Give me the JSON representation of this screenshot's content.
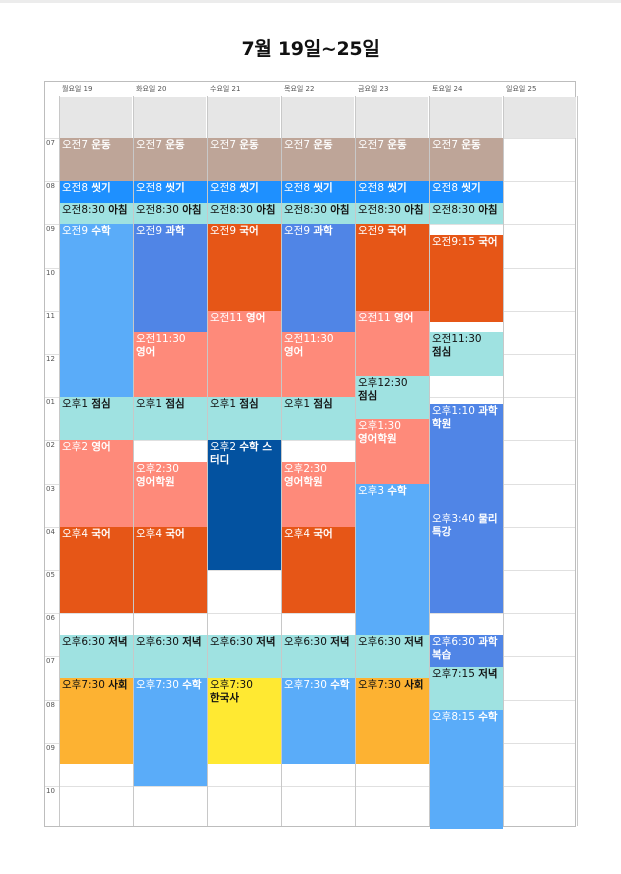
{
  "title": "7월 19일~25일",
  "days": [
    "월요일 19",
    "화요일 20",
    "수요일 21",
    "목요일 22",
    "금요일 23",
    "토요일 24",
    "일요일 25"
  ],
  "hours": [
    "07",
    "08",
    "09",
    "10",
    "11",
    "12",
    "01",
    "02",
    "03",
    "04",
    "05",
    "06",
    "07",
    "08",
    "09",
    "10"
  ],
  "colors": {
    "exercise": "#bea598",
    "wash": "#1e90ff",
    "meal": "#9fe2e1",
    "math": "#5aacf9",
    "science": "#5085e6",
    "korean": "#e65617",
    "english": "#fe8a7a",
    "academy": "#0352a0",
    "social": "#fdb232",
    "history": "#ffe932"
  },
  "events": [
    {
      "day": 0,
      "start": "07:00",
      "end": "08:00",
      "time": "오전7",
      "name": "운동",
      "color": "exercise",
      "text": "light"
    },
    {
      "day": 1,
      "start": "07:00",
      "end": "08:00",
      "time": "오전7",
      "name": "운동",
      "color": "exercise",
      "text": "light"
    },
    {
      "day": 2,
      "start": "07:00",
      "end": "08:00",
      "time": "오전7",
      "name": "운동",
      "color": "exercise",
      "text": "light"
    },
    {
      "day": 3,
      "start": "07:00",
      "end": "08:00",
      "time": "오전7",
      "name": "운동",
      "color": "exercise",
      "text": "light"
    },
    {
      "day": 4,
      "start": "07:00",
      "end": "08:00",
      "time": "오전7",
      "name": "운동",
      "color": "exercise",
      "text": "light"
    },
    {
      "day": 5,
      "start": "07:00",
      "end": "08:00",
      "time": "오전7",
      "name": "운동",
      "color": "exercise",
      "text": "light"
    },
    {
      "day": 0,
      "start": "08:00",
      "end": "08:30",
      "time": "오전8",
      "name": "씻기",
      "color": "wash",
      "text": "light"
    },
    {
      "day": 1,
      "start": "08:00",
      "end": "08:30",
      "time": "오전8",
      "name": "씻기",
      "color": "wash",
      "text": "light"
    },
    {
      "day": 2,
      "start": "08:00",
      "end": "08:30",
      "time": "오전8",
      "name": "씻기",
      "color": "wash",
      "text": "light"
    },
    {
      "day": 3,
      "start": "08:00",
      "end": "08:30",
      "time": "오전8",
      "name": "씻기",
      "color": "wash",
      "text": "light"
    },
    {
      "day": 4,
      "start": "08:00",
      "end": "08:30",
      "time": "오전8",
      "name": "씻기",
      "color": "wash",
      "text": "light"
    },
    {
      "day": 5,
      "start": "08:00",
      "end": "08:30",
      "time": "오전8",
      "name": "씻기",
      "color": "wash",
      "text": "light"
    },
    {
      "day": 0,
      "start": "08:30",
      "end": "09:00",
      "time": "오전8:30",
      "name": "아침",
      "color": "meal",
      "text": "dark"
    },
    {
      "day": 1,
      "start": "08:30",
      "end": "09:00",
      "time": "오전8:30",
      "name": "아침",
      "color": "meal",
      "text": "dark"
    },
    {
      "day": 2,
      "start": "08:30",
      "end": "09:00",
      "time": "오전8:30",
      "name": "아침",
      "color": "meal",
      "text": "dark"
    },
    {
      "day": 3,
      "start": "08:30",
      "end": "09:00",
      "time": "오전8:30",
      "name": "아침",
      "color": "meal",
      "text": "dark"
    },
    {
      "day": 4,
      "start": "08:30",
      "end": "09:00",
      "time": "오전8:30",
      "name": "아침",
      "color": "meal",
      "text": "dark"
    },
    {
      "day": 5,
      "start": "08:30",
      "end": "09:00",
      "time": "오전8:30",
      "name": "아침",
      "color": "meal",
      "text": "dark"
    },
    {
      "day": 0,
      "start": "09:00",
      "end": "13:00",
      "time": "오전9",
      "name": "수학",
      "color": "math",
      "text": "light"
    },
    {
      "day": 1,
      "start": "09:00",
      "end": "11:30",
      "time": "오전9",
      "name": "과학",
      "color": "science",
      "text": "light"
    },
    {
      "day": 1,
      "start": "11:30",
      "end": "13:00",
      "time": "오전11:30",
      "name": "영어",
      "color": "english",
      "text": "light",
      "wrap": true
    },
    {
      "day": 2,
      "start": "09:00",
      "end": "11:00",
      "time": "오전9",
      "name": "국어",
      "color": "korean",
      "text": "light"
    },
    {
      "day": 2,
      "start": "11:00",
      "end": "13:00",
      "time": "오전11",
      "name": "영어",
      "color": "english",
      "text": "light"
    },
    {
      "day": 3,
      "start": "09:00",
      "end": "11:30",
      "time": "오전9",
      "name": "과학",
      "color": "science",
      "text": "light"
    },
    {
      "day": 3,
      "start": "11:30",
      "end": "13:00",
      "time": "오전11:30",
      "name": "영어",
      "color": "english",
      "text": "light",
      "wrap": true
    },
    {
      "day": 4,
      "start": "09:00",
      "end": "11:00",
      "time": "오전9",
      "name": "국어",
      "color": "korean",
      "text": "light"
    },
    {
      "day": 4,
      "start": "11:00",
      "end": "12:30",
      "time": "오전11",
      "name": "영어",
      "color": "english",
      "text": "light"
    },
    {
      "day": 4,
      "start": "12:30",
      "end": "13:30",
      "time": "오후12:30",
      "name": "점심",
      "color": "meal",
      "text": "dark",
      "wrap": true
    },
    {
      "day": 5,
      "start": "09:15",
      "end": "11:15",
      "time": "오전9:15",
      "name": "국어",
      "color": "korean",
      "text": "light"
    },
    {
      "day": 5,
      "start": "11:30",
      "end": "12:30",
      "time": "오전11:30",
      "name": "점심",
      "color": "meal",
      "text": "dark",
      "wrap": true
    },
    {
      "day": 0,
      "start": "13:00",
      "end": "14:00",
      "time": "오후1",
      "name": "점심",
      "color": "meal",
      "text": "dark"
    },
    {
      "day": 1,
      "start": "13:00",
      "end": "14:00",
      "time": "오후1",
      "name": "점심",
      "color": "meal",
      "text": "dark"
    },
    {
      "day": 2,
      "start": "13:00",
      "end": "14:00",
      "time": "오후1",
      "name": "점심",
      "color": "meal",
      "text": "dark"
    },
    {
      "day": 3,
      "start": "13:00",
      "end": "14:00",
      "time": "오후1",
      "name": "점심",
      "color": "meal",
      "text": "dark"
    },
    {
      "day": 4,
      "start": "13:30",
      "end": "15:00",
      "time": "오후1:30",
      "name": "영어학원",
      "color": "english",
      "text": "light",
      "wrap": true
    },
    {
      "day": 5,
      "start": "13:10",
      "end": "15:40",
      "time": "오후1:10",
      "name": "과학학원",
      "color": "science",
      "text": "light",
      "wrap2": true
    },
    {
      "day": 0,
      "start": "14:00",
      "end": "16:00",
      "time": "오후2",
      "name": "영어",
      "color": "english",
      "text": "light"
    },
    {
      "day": 1,
      "start": "14:30",
      "end": "16:00",
      "time": "오후2:30",
      "name": "영어학원",
      "color": "english",
      "text": "light",
      "wrap": true
    },
    {
      "day": 2,
      "start": "14:00",
      "end": "17:00",
      "time": "오후2",
      "name": "수학 스터디",
      "color": "academy",
      "text": "light",
      "wrap2": true
    },
    {
      "day": 3,
      "start": "14:30",
      "end": "16:00",
      "time": "오후2:30",
      "name": "영어학원",
      "color": "english",
      "text": "light",
      "wrap": true
    },
    {
      "day": 4,
      "start": "15:00",
      "end": "18:30",
      "time": "오후3",
      "name": "수학",
      "color": "math",
      "text": "light"
    },
    {
      "day": 5,
      "start": "15:40",
      "end": "18:00",
      "time": "오후3:40",
      "name": "물리 특강",
      "color": "science",
      "text": "light",
      "wrap2": true
    },
    {
      "day": 0,
      "start": "16:00",
      "end": "18:00",
      "time": "오후4",
      "name": "국어",
      "color": "korean",
      "text": "light"
    },
    {
      "day": 1,
      "start": "16:00",
      "end": "18:00",
      "time": "오후4",
      "name": "국어",
      "color": "korean",
      "text": "light"
    },
    {
      "day": 3,
      "start": "16:00",
      "end": "18:00",
      "time": "오후4",
      "name": "국어",
      "color": "korean",
      "text": "light"
    },
    {
      "day": 0,
      "start": "18:30",
      "end": "19:30",
      "time": "오후6:30",
      "name": "저녁",
      "color": "meal",
      "text": "dark"
    },
    {
      "day": 1,
      "start": "18:30",
      "end": "19:30",
      "time": "오후6:30",
      "name": "저녁",
      "color": "meal",
      "text": "dark"
    },
    {
      "day": 2,
      "start": "18:30",
      "end": "19:30",
      "time": "오후6:30",
      "name": "저녁",
      "color": "meal",
      "text": "dark"
    },
    {
      "day": 3,
      "start": "18:30",
      "end": "19:30",
      "time": "오후6:30",
      "name": "저녁",
      "color": "meal",
      "text": "dark"
    },
    {
      "day": 4,
      "start": "18:30",
      "end": "19:30",
      "time": "오후6:30",
      "name": "저녁",
      "color": "meal",
      "text": "dark"
    },
    {
      "day": 5,
      "start": "18:30",
      "end": "19:15",
      "time": "오후6:30",
      "name": "과학 복습",
      "color": "science",
      "text": "light",
      "wrap2": true
    },
    {
      "day": 5,
      "start": "19:15",
      "end": "20:15",
      "time": "오후7:15",
      "name": "저녁",
      "color": "meal",
      "text": "dark"
    },
    {
      "day": 0,
      "start": "19:30",
      "end": "21:30",
      "time": "오후7:30",
      "name": "사회",
      "color": "social",
      "text": "dark"
    },
    {
      "day": 1,
      "start": "19:30",
      "end": "22:00",
      "time": "오후7:30",
      "name": "수학",
      "color": "math",
      "text": "light"
    },
    {
      "day": 2,
      "start": "19:30",
      "end": "21:30",
      "time": "오후7:30",
      "name": "한국사",
      "color": "history",
      "text": "dark",
      "wrap": true
    },
    {
      "day": 3,
      "start": "19:30",
      "end": "21:30",
      "time": "오후7:30",
      "name": "수학",
      "color": "math",
      "text": "light"
    },
    {
      "day": 4,
      "start": "19:30",
      "end": "21:30",
      "time": "오후7:30",
      "name": "사회",
      "color": "social",
      "text": "dark"
    },
    {
      "day": 5,
      "start": "20:15",
      "end": "23:00",
      "time": "오후8:15",
      "name": "수학",
      "color": "math",
      "text": "light"
    }
  ]
}
